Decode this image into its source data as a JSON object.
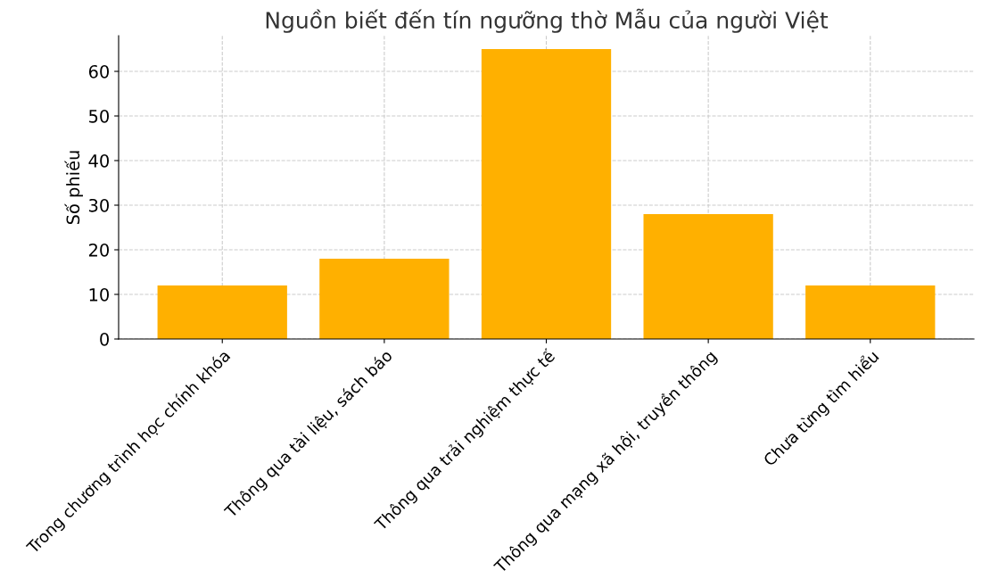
{
  "chart_data": {
    "type": "bar",
    "title": "Nguồn biết đến tín ngưỡng thờ Mẫu của người Việt",
    "ylabel": "Số phiếu",
    "categories": [
      "Trong chương trình học chính khóa",
      "Thông qua tài liệu, sách báo",
      "Thông qua trải nghiệm thực tế",
      "Thông qua mạng xã hội, truyền thông",
      "Chưa từng tìm hiểu"
    ],
    "values": [
      12,
      18,
      65,
      28,
      12
    ],
    "color": "#ffb000",
    "ylim": [
      0,
      68
    ],
    "yticks": [
      0,
      10,
      20,
      30,
      40,
      50,
      60
    ],
    "grid": true
  }
}
